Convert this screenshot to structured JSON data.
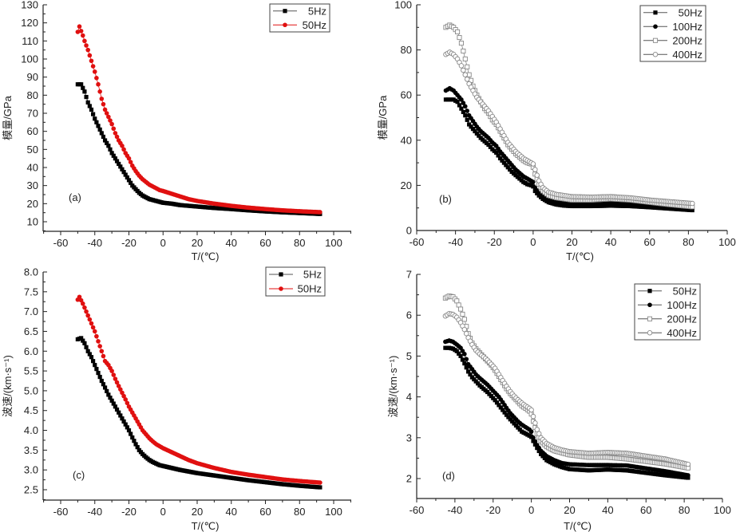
{
  "chart_data": [
    {
      "id": "a",
      "type": "scatter",
      "panel_label": "(a)",
      "xlabel": "T/(℃)",
      "ylabel": "模量/GPa",
      "xlim": [
        -70,
        110
      ],
      "ylim": [
        5,
        130
      ],
      "xticks": [
        -60,
        -40,
        -20,
        0,
        20,
        40,
        60,
        80,
        100
      ],
      "yticks": [
        10,
        20,
        30,
        40,
        50,
        60,
        70,
        80,
        90,
        100,
        110,
        120,
        130
      ],
      "legend_position": "top-right",
      "series": [
        {
          "name": "5Hz",
          "color": "#000000",
          "marker": "square-filled",
          "x": [
            -50,
            -48,
            -46,
            -44,
            -42,
            -40,
            -38,
            -36,
            -34,
            -32,
            -30,
            -28,
            -26,
            -24,
            -22,
            -20,
            -18,
            -16,
            -14,
            -12,
            -10,
            -8,
            -6,
            -4,
            -2,
            0,
            5,
            10,
            15,
            20,
            30,
            40,
            50,
            60,
            70,
            80,
            92
          ],
          "y": [
            86,
            86,
            82,
            76,
            72,
            67,
            63,
            59,
            55,
            52,
            48,
            45,
            42,
            39,
            36,
            33,
            30,
            28,
            26,
            24.5,
            23.5,
            22.5,
            22,
            21.5,
            21,
            20.5,
            20,
            19.2,
            18.8,
            18.4,
            17.6,
            17,
            16.3,
            15.7,
            15.2,
            14.8,
            14.3
          ]
        },
        {
          "name": "50Hz",
          "color": "#e01010",
          "marker": "circle-filled",
          "x": [
            -50,
            -49,
            -47,
            -46,
            -44,
            -42,
            -40,
            -38,
            -36,
            -34,
            -32,
            -30,
            -28,
            -26,
            -24,
            -22,
            -20,
            -18,
            -16,
            -14,
            -12,
            -10,
            -8,
            -6,
            -4,
            -2,
            0,
            5,
            10,
            15,
            20,
            30,
            40,
            50,
            60,
            70,
            80,
            92
          ],
          "y": [
            115,
            118,
            113,
            110,
            105,
            99,
            93,
            86,
            78,
            72,
            68,
            64,
            59,
            55,
            52,
            48,
            45,
            41,
            38,
            35.5,
            33.5,
            32,
            30.5,
            29.5,
            28.5,
            27.5,
            27,
            25.5,
            24,
            22.5,
            21.5,
            20,
            18.8,
            17.8,
            17,
            16.3,
            15.8,
            15.3
          ]
        }
      ]
    },
    {
      "id": "b",
      "type": "scatter",
      "panel_label": "(b)",
      "xlabel": "T/(℃)",
      "ylabel": "模量/GPa",
      "xlim": [
        -60,
        100
      ],
      "ylim": [
        0,
        100
      ],
      "xticks": [
        -60,
        -40,
        -20,
        0,
        20,
        40,
        60,
        80,
        100
      ],
      "yticks": [
        0,
        20,
        40,
        60,
        80,
        100
      ],
      "legend_position": "top-right",
      "series": [
        {
          "name": "50Hz",
          "color": "#000000",
          "marker": "square-filled",
          "x": [
            -45,
            -43,
            -41,
            -39,
            -37,
            -35,
            -33,
            -31,
            -29,
            -27,
            -25,
            -23,
            -21,
            -19,
            -17,
            -15,
            -13,
            -11,
            -9,
            -7,
            -5,
            -3,
            -1,
            0,
            1,
            3,
            5,
            8,
            12,
            16,
            20,
            30,
            40,
            50,
            60,
            70,
            82
          ],
          "y": [
            58,
            58,
            58,
            57,
            54,
            51,
            47,
            45,
            43,
            41,
            39.5,
            38,
            36,
            34.5,
            32,
            30,
            28,
            26,
            24.5,
            23,
            21.5,
            20.5,
            20,
            19.5,
            17.5,
            15.5,
            14,
            12.5,
            11.5,
            11,
            10.8,
            10.8,
            11,
            10.8,
            10.3,
            9.7,
            9
          ]
        },
        {
          "name": "100Hz",
          "color": "#000000",
          "marker": "circle-filled",
          "x": [
            -45,
            -43,
            -41,
            -39,
            -37,
            -35,
            -33,
            -31,
            -29,
            -27,
            -25,
            -23,
            -21,
            -19,
            -17,
            -15,
            -13,
            -11,
            -9,
            -7,
            -5,
            -3,
            -1,
            0,
            1,
            3,
            5,
            8,
            12,
            16,
            20,
            30,
            40,
            50,
            60,
            70,
            82
          ],
          "y": [
            62,
            63,
            62,
            60,
            58,
            55,
            51,
            48.5,
            46,
            44,
            42.5,
            41,
            39,
            37.5,
            35,
            33,
            31,
            29,
            27,
            25.5,
            24,
            23,
            22,
            21.5,
            19,
            16.5,
            15,
            13.5,
            12.5,
            12,
            11.8,
            11.8,
            12,
            11.8,
            11,
            10.3,
            9.5
          ]
        },
        {
          "name": "200Hz",
          "color": "#888888",
          "marker": "square-open",
          "x": [
            -45,
            -43,
            -41,
            -39,
            -37,
            -35,
            -33,
            -31,
            -29,
            -27,
            -25,
            -23,
            -21,
            -19,
            -17,
            -15,
            -13,
            -11,
            -9,
            -7,
            -5,
            -3,
            -1,
            0,
            1,
            3,
            5,
            8,
            12,
            16,
            20,
            30,
            40,
            50,
            60,
            70,
            82
          ],
          "y": [
            90,
            91,
            90,
            88,
            83,
            76,
            69,
            64,
            60,
            57,
            54,
            52,
            49,
            47,
            44,
            41,
            38,
            36,
            34,
            32.5,
            31,
            30,
            29.5,
            28,
            25,
            20.5,
            17.5,
            15.5,
            14.5,
            14,
            13.5,
            13.5,
            14,
            13.5,
            12.5,
            11.5,
            10.5
          ]
        },
        {
          "name": "400Hz",
          "color": "#888888",
          "marker": "circle-open",
          "x": [
            -45,
            -43,
            -41,
            -39,
            -37,
            -35,
            -33,
            -31,
            -29,
            -27,
            -25,
            -23,
            -21,
            -19,
            -17,
            -15,
            -13,
            -11,
            -9,
            -7,
            -5,
            -3,
            -1,
            0,
            1,
            3,
            5,
            8,
            12,
            16,
            20,
            30,
            40,
            50,
            60,
            70,
            82
          ],
          "y": [
            78,
            79,
            78,
            76,
            73,
            69,
            65,
            62,
            59,
            57,
            55,
            53,
            50.5,
            48,
            45,
            42,
            39,
            37,
            35,
            33.5,
            32,
            31,
            30,
            29.5,
            27,
            22,
            19,
            17,
            16,
            15.5,
            15,
            14.8,
            15,
            14.5,
            13.5,
            12.8,
            12
          ]
        }
      ]
    },
    {
      "id": "c",
      "type": "scatter",
      "panel_label": "(c)",
      "xlabel": "T/(℃)",
      "ylabel": "波速/(km·s⁻¹)",
      "xlim": [
        -70,
        110
      ],
      "ylim": [
        2.25,
        8.0
      ],
      "xticks": [
        -60,
        -40,
        -20,
        0,
        20,
        40,
        60,
        80,
        100
      ],
      "yticks": [
        "2.5",
        "3.0",
        "3.5",
        "4.0",
        "4.5",
        "5.0",
        "5.5",
        "6.0",
        "6.5",
        "7.0",
        "7.5",
        "8.0"
      ],
      "legend_position": "top-right",
      "series": [
        {
          "name": "5Hz",
          "color": "#000000",
          "marker": "square-filled",
          "x": [
            -50,
            -48,
            -46,
            -44,
            -42,
            -40,
            -38,
            -36,
            -34,
            -32,
            -30,
            -28,
            -26,
            -24,
            -22,
            -20,
            -18,
            -16,
            -14,
            -12,
            -10,
            -8,
            -6,
            -4,
            -2,
            0,
            5,
            10,
            15,
            20,
            30,
            40,
            50,
            60,
            70,
            80,
            92
          ],
          "y": [
            6.3,
            6.33,
            6.2,
            6.0,
            5.85,
            5.65,
            5.45,
            5.25,
            5.08,
            4.9,
            4.75,
            4.6,
            4.45,
            4.3,
            4.15,
            4.0,
            3.82,
            3.65,
            3.5,
            3.4,
            3.32,
            3.25,
            3.2,
            3.16,
            3.12,
            3.1,
            3.05,
            3.0,
            2.96,
            2.92,
            2.86,
            2.8,
            2.74,
            2.69,
            2.64,
            2.6,
            2.56
          ]
        },
        {
          "name": "50Hz",
          "color": "#e01010",
          "marker": "circle-filled",
          "x": [
            -50,
            -49,
            -47,
            -46,
            -44,
            -42,
            -40,
            -38,
            -36,
            -34,
            -32,
            -30,
            -28,
            -26,
            -24,
            -22,
            -20,
            -18,
            -16,
            -14,
            -12,
            -10,
            -8,
            -6,
            -4,
            -2,
            0,
            5,
            10,
            15,
            20,
            30,
            40,
            50,
            60,
            70,
            80,
            92
          ],
          "y": [
            7.3,
            7.37,
            7.2,
            7.1,
            6.9,
            6.7,
            6.5,
            6.25,
            6.0,
            5.75,
            5.65,
            5.5,
            5.3,
            5.12,
            4.95,
            4.78,
            4.6,
            4.45,
            4.3,
            4.15,
            4.0,
            3.9,
            3.8,
            3.72,
            3.65,
            3.6,
            3.55,
            3.45,
            3.35,
            3.25,
            3.17,
            3.05,
            2.95,
            2.88,
            2.82,
            2.76,
            2.72,
            2.68
          ]
        }
      ]
    },
    {
      "id": "d",
      "type": "scatter",
      "panel_label": "(d)",
      "xlabel": "T/(℃)",
      "ylabel": "波速/(km·s⁻¹)",
      "xlim": [
        -60,
        100
      ],
      "ylim": [
        1.5,
        7
      ],
      "xticks": [
        -60,
        -40,
        -20,
        0,
        20,
        40,
        60,
        80,
        100
      ],
      "yticks": [
        2,
        3,
        4,
        5,
        6,
        7
      ],
      "legend_position": "top-right",
      "series": [
        {
          "name": "50Hz",
          "color": "#000000",
          "marker": "square-filled",
          "x": [
            -45,
            -43,
            -41,
            -39,
            -37,
            -35,
            -33,
            -31,
            -29,
            -27,
            -25,
            -23,
            -21,
            -19,
            -17,
            -15,
            -13,
            -11,
            -9,
            -7,
            -5,
            -3,
            -1,
            0,
            1,
            3,
            5,
            8,
            12,
            16,
            20,
            30,
            40,
            50,
            60,
            70,
            82
          ],
          "y": [
            5.2,
            5.2,
            5.18,
            5.12,
            5.0,
            4.82,
            4.62,
            4.48,
            4.38,
            4.28,
            4.2,
            4.12,
            4.02,
            3.92,
            3.8,
            3.68,
            3.56,
            3.45,
            3.35,
            3.25,
            3.15,
            3.1,
            3.05,
            3.02,
            2.92,
            2.75,
            2.6,
            2.45,
            2.35,
            2.28,
            2.23,
            2.2,
            2.22,
            2.2,
            2.14,
            2.08,
            2.02
          ]
        },
        {
          "name": "100Hz",
          "color": "#000000",
          "marker": "circle-filled",
          "x": [
            -45,
            -43,
            -41,
            -39,
            -37,
            -35,
            -33,
            -31,
            -29,
            -27,
            -25,
            -23,
            -21,
            -19,
            -17,
            -15,
            -13,
            -11,
            -9,
            -7,
            -5,
            -3,
            -1,
            0,
            1,
            3,
            5,
            8,
            12,
            16,
            20,
            30,
            40,
            50,
            60,
            70,
            82
          ],
          "y": [
            5.35,
            5.38,
            5.35,
            5.28,
            5.2,
            5.05,
            4.8,
            4.68,
            4.55,
            4.46,
            4.38,
            4.3,
            4.2,
            4.1,
            4.0,
            3.87,
            3.73,
            3.6,
            3.5,
            3.4,
            3.32,
            3.26,
            3.2,
            3.15,
            3.0,
            2.82,
            2.68,
            2.55,
            2.45,
            2.38,
            2.35,
            2.33,
            2.33,
            2.32,
            2.25,
            2.18,
            2.08
          ]
        },
        {
          "name": "200Hz",
          "color": "#888888",
          "marker": "square-open",
          "x": [
            -45,
            -43,
            -41,
            -39,
            -37,
            -35,
            -33,
            -31,
            -29,
            -27,
            -25,
            -23,
            -21,
            -19,
            -17,
            -15,
            -13,
            -11,
            -9,
            -7,
            -5,
            -3,
            -1,
            0,
            1,
            3,
            5,
            8,
            12,
            16,
            20,
            30,
            40,
            50,
            60,
            70,
            82
          ],
          "y": [
            6.42,
            6.47,
            6.45,
            6.35,
            6.15,
            5.9,
            5.55,
            5.32,
            5.18,
            5.08,
            4.98,
            4.88,
            4.78,
            4.65,
            4.5,
            4.35,
            4.2,
            4.08,
            3.98,
            3.88,
            3.78,
            3.72,
            3.65,
            3.58,
            3.4,
            3.1,
            2.92,
            2.78,
            2.68,
            2.63,
            2.58,
            2.52,
            2.52,
            2.48,
            2.42,
            2.36,
            2.26
          ]
        },
        {
          "name": "400Hz",
          "color": "#888888",
          "marker": "circle-open",
          "x": [
            -45,
            -43,
            -41,
            -39,
            -37,
            -35,
            -33,
            -31,
            -29,
            -27,
            -25,
            -23,
            -21,
            -19,
            -17,
            -15,
            -13,
            -11,
            -9,
            -7,
            -5,
            -3,
            -1,
            0,
            1,
            3,
            5,
            8,
            12,
            16,
            20,
            30,
            40,
            50,
            60,
            70,
            82
          ],
          "y": [
            5.98,
            6.04,
            6.02,
            5.95,
            5.82,
            5.65,
            5.45,
            5.28,
            5.14,
            5.05,
            4.98,
            4.9,
            4.8,
            4.7,
            4.55,
            4.4,
            4.26,
            4.13,
            4.02,
            3.93,
            3.85,
            3.78,
            3.72,
            3.68,
            3.52,
            3.2,
            3.0,
            2.86,
            2.76,
            2.7,
            2.66,
            2.62,
            2.64,
            2.62,
            2.55,
            2.48,
            2.35
          ]
        }
      ]
    }
  ]
}
